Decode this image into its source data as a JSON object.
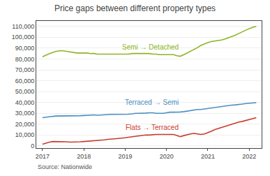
{
  "chart_data": {
    "type": "line",
    "title": "Price gaps between different property types",
    "annotations": [
      "Source: Nationwide"
    ],
    "x": [
      2017.0,
      2017.08,
      2017.17,
      2017.25,
      2017.33,
      2017.42,
      2017.5,
      2017.58,
      2017.67,
      2017.75,
      2017.83,
      2017.92,
      2018.0,
      2018.08,
      2018.17,
      2018.25,
      2018.33,
      2018.42,
      2018.5,
      2018.58,
      2018.67,
      2018.75,
      2018.83,
      2018.92,
      2019.0,
      2019.08,
      2019.17,
      2019.25,
      2019.33,
      2019.42,
      2019.5,
      2019.58,
      2019.67,
      2019.75,
      2019.83,
      2019.92,
      2020.0,
      2020.08,
      2020.17,
      2020.25,
      2020.33,
      2020.42,
      2020.5,
      2020.58,
      2020.67,
      2020.75,
      2020.83,
      2020.92,
      2021.0,
      2021.08,
      2021.17,
      2021.25,
      2021.33,
      2021.42,
      2021.5,
      2021.58,
      2021.67,
      2021.75,
      2021.83,
      2021.92,
      2022.0,
      2022.08,
      2022.17
    ],
    "series": [
      {
        "name": "Semi → Detached",
        "color": "#8cb424",
        "values": [
          82000,
          83500,
          85000,
          86000,
          87000,
          87500,
          87500,
          87000,
          86500,
          86000,
          85500,
          85500,
          85500,
          85500,
          85000,
          85000,
          84500,
          84500,
          84500,
          84500,
          84500,
          84500,
          84500,
          84500,
          84500,
          84500,
          85000,
          85000,
          85000,
          85000,
          85000,
          85000,
          84500,
          84500,
          84000,
          84000,
          84000,
          84000,
          84000,
          83000,
          82500,
          84000,
          85500,
          87000,
          88500,
          90500,
          92500,
          94000,
          95000,
          96000,
          96500,
          97000,
          97500,
          98500,
          99500,
          100500,
          102000,
          103500,
          105000,
          107000,
          108000,
          109000,
          110000
        ]
      },
      {
        "name": "Terraced → Semi",
        "color": "#4a8fc0",
        "values": [
          26000,
          26500,
          27000,
          27200,
          27500,
          27500,
          27800,
          27500,
          27500,
          27500,
          27500,
          27800,
          28000,
          28200,
          28500,
          28500,
          28200,
          28500,
          28800,
          29000,
          29000,
          29000,
          29000,
          29000,
          29000,
          29200,
          29500,
          30000,
          30000,
          30000,
          30200,
          30500,
          30500,
          30000,
          30000,
          30000,
          30500,
          31000,
          31000,
          31000,
          31200,
          31500,
          32000,
          32500,
          33000,
          33500,
          33500,
          34000,
          34500,
          35000,
          35500,
          36000,
          36200,
          36500,
          37000,
          37500,
          37800,
          38000,
          38500,
          39000,
          39200,
          39500,
          39800
        ]
      },
      {
        "name": "Flats → Terraced",
        "color": "#c83c2e",
        "values": [
          1500,
          2500,
          3500,
          4000,
          4000,
          4000,
          4000,
          3800,
          3500,
          3500,
          3500,
          3800,
          4000,
          4200,
          4500,
          5000,
          5000,
          5200,
          5500,
          6000,
          6500,
          6500,
          6800,
          7000,
          7500,
          8000,
          8500,
          9000,
          9500,
          10000,
          10000,
          10000,
          10500,
          10500,
          10500,
          10500,
          10500,
          10500,
          10500,
          9500,
          8500,
          9500,
          10500,
          11000,
          11500,
          11000,
          10500,
          11000,
          12000,
          13500,
          15000,
          16000,
          17000,
          18000,
          19000,
          20000,
          21000,
          22000,
          22500,
          23500,
          24000,
          25000,
          26000
        ]
      }
    ],
    "xlim": [
      2016.85,
      2022.3
    ],
    "ylim": [
      -2000,
      115000
    ],
    "xticks": [
      2017,
      2018,
      2019,
      2020,
      2021,
      2022
    ],
    "yticks": [
      0,
      {
        "value": 10000,
        "label": "10,000"
      },
      {
        "value": 20000,
        "label": "20,000"
      },
      {
        "value": 30000,
        "label": "30,000"
      },
      {
        "value": 40000,
        "label": "40,000"
      },
      {
        "value": 50000,
        "label": "50,000"
      },
      {
        "value": 60000,
        "label": "60,000"
      },
      {
        "value": 70000,
        "label": "70,000"
      },
      {
        "value": 80000,
        "label": "80,000"
      },
      {
        "value": 90000,
        "label": "90,000"
      },
      {
        "value": 100000,
        "label": "100,000"
      },
      {
        "value": 110000,
        "label": "110,000"
      }
    ],
    "grid": true
  }
}
